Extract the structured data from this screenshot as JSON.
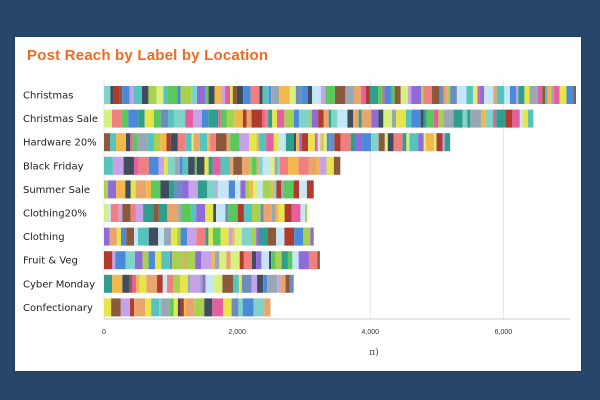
{
  "chart_data": {
    "type": "bar",
    "orientation": "horizontal",
    "stacked": true,
    "title": "Post Reach by Label by Location",
    "xlabel": "π)",
    "xlim": [
      0,
      7000
    ],
    "xticks": [
      0,
      2000,
      4000,
      6000
    ],
    "xtick_labels": [
      "0",
      "2,000",
      "4,000",
      "6,000"
    ],
    "grid": "vertical",
    "legend": "none",
    "categories": [
      "Christmas",
      "Christmas Sale",
      "Hardware 20%",
      "Black Friday",
      "Summer Sale",
      "Clothing20%",
      "Clothing",
      "Fruit & Veg",
      "Cyber Monday",
      "Confectionary"
    ],
    "values": [
      7500,
      6450,
      5200,
      3550,
      3150,
      3050,
      3150,
      3250,
      2850,
      2500
    ],
    "segment_palette": [
      "#e9a56b",
      "#55c4be",
      "#c4e6f6",
      "#a8d14f",
      "#3f4d5c",
      "#8e6bd8",
      "#f2b94a",
      "#e35fa0",
      "#4a8ad8",
      "#d7f07e",
      "#b03a2e",
      "#7fd3c7",
      "#9aa7b5",
      "#f27f7f",
      "#2f9e8f",
      "#c8a2e8",
      "#6c8ebf",
      "#8b5a3c",
      "#e6e64a",
      "#5bc85b"
    ]
  }
}
